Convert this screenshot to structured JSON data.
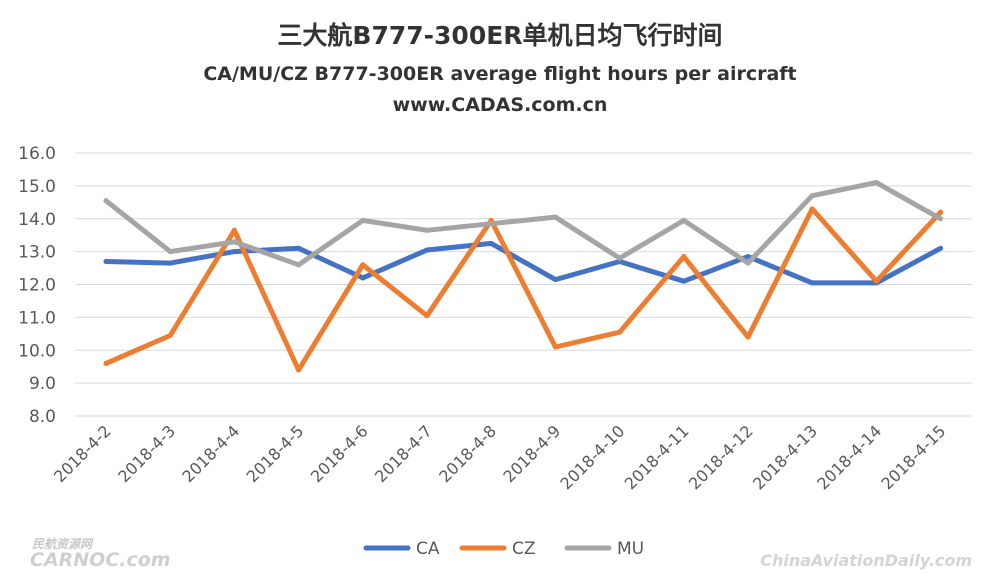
{
  "chart_data": {
    "type": "line",
    "title": "三大航B777-300ER单机日均飞行时间",
    "subtitle": "CA/MU/CZ B777-300ER average flight hours per aircraft",
    "website": "www.CADAS.com.cn",
    "xlabel": "",
    "ylabel": "",
    "ylim": [
      8.0,
      16.0
    ],
    "yticks": [
      "8.0",
      "9.0",
      "10.0",
      "11.0",
      "12.0",
      "13.0",
      "14.0",
      "15.0",
      "16.0"
    ],
    "grid": true,
    "legend_position": "bottom",
    "categories": [
      "2018-4-2",
      "2018-4-3",
      "2018-4-4",
      "2018-4-5",
      "2018-4-6",
      "2018-4-7",
      "2018-4-8",
      "2018-4-9",
      "2018-4-10",
      "2018-4-11",
      "2018-4-12",
      "2018-4-13",
      "2018-4-14",
      "2018-4-15"
    ],
    "series": [
      {
        "name": "CA",
        "color": "#4472C4",
        "values": [
          12.7,
          12.65,
          13.0,
          13.1,
          12.2,
          13.05,
          13.25,
          12.15,
          12.7,
          12.1,
          12.85,
          12.05,
          12.05,
          13.1
        ]
      },
      {
        "name": "CZ",
        "color": "#ED7D31",
        "values": [
          9.6,
          10.45,
          13.65,
          9.4,
          12.6,
          11.05,
          13.95,
          10.1,
          10.55,
          12.85,
          10.4,
          14.3,
          12.1,
          14.2
        ]
      },
      {
        "name": "MU",
        "color": "#A5A5A5",
        "values": [
          14.55,
          13.0,
          13.3,
          12.6,
          13.95,
          13.65,
          13.85,
          14.05,
          12.8,
          13.95,
          12.65,
          14.7,
          15.1,
          14.0
        ]
      }
    ]
  },
  "watermarks": {
    "left_cn": "民航资源网",
    "left_en": "CARNOC.com",
    "right": "ChinaAviationDaily.com"
  }
}
